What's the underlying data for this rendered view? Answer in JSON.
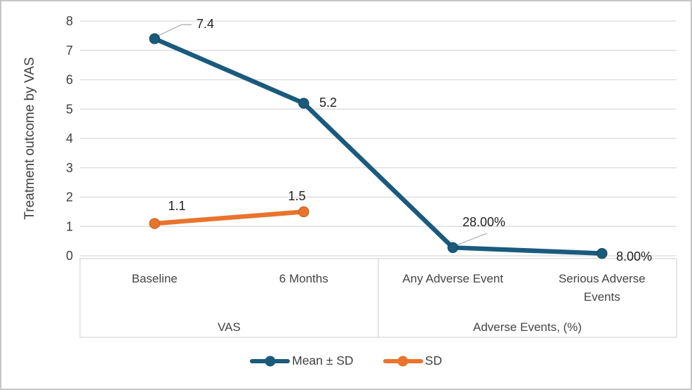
{
  "figure": {
    "background": "#ffffff",
    "border_color": "#c6c6c6"
  },
  "chart_data": {
    "type": "line",
    "title": "",
    "xlabel": "",
    "ylabel": "Treatment outcome by VAS",
    "ylim": [
      0,
      8
    ],
    "ytick_step": 1,
    "grid": true,
    "legend_position": "bottom",
    "categories": [
      "Baseline",
      "6 Months",
      "Any Adverse Event",
      "Serious Adverse Events"
    ],
    "category_groups": [
      {
        "label": "VAS",
        "start": 0,
        "end": 1
      },
      {
        "label": "Adverse Events, (%)",
        "start": 2,
        "end": 3
      }
    ],
    "series": [
      {
        "name": "Mean ± SD",
        "color": "#1a5a7d",
        "marker_stroke": "#14455d",
        "values": [
          7.4,
          5.2,
          0.28,
          0.08
        ],
        "data_labels": [
          "7.4",
          "5.2",
          "28.00%",
          "8.00%"
        ]
      },
      {
        "name": "SD",
        "color": "#e8742d",
        "marker_stroke": "#c05f1d",
        "values": [
          1.1,
          1.5,
          null,
          null
        ],
        "data_labels": [
          "1.1",
          "1.5",
          null,
          null
        ]
      }
    ],
    "colors": {
      "gridline": "#d9d9d9",
      "axis_box": "#d9d9d9",
      "leader_line": "#a6a6a6",
      "axis_text": "#404040",
      "data_label_text": "#1f1f1f"
    }
  }
}
